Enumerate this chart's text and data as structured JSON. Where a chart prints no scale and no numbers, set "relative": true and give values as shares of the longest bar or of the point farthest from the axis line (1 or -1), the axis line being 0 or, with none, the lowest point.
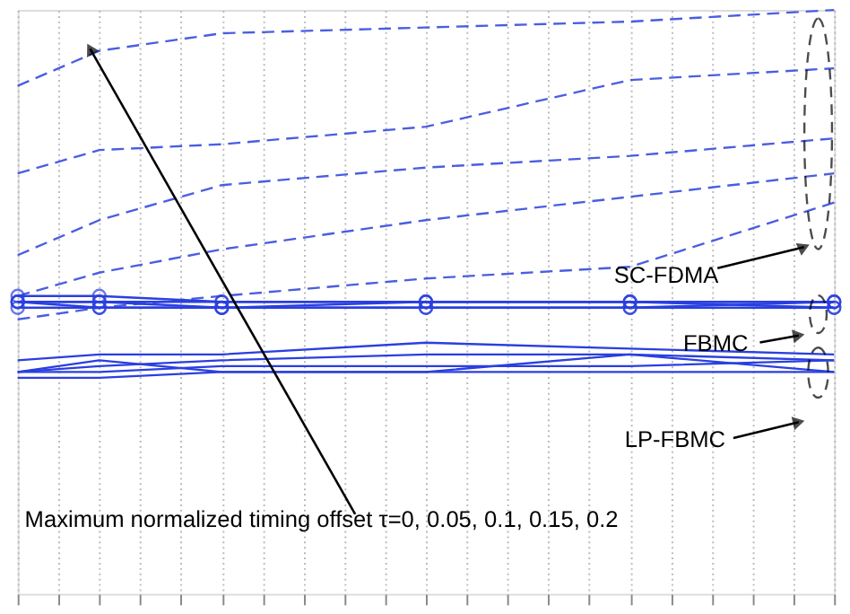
{
  "chart_data": {
    "type": "line",
    "relative": true,
    "categories": [
      null,
      null,
      null,
      null,
      null,
      null,
      null,
      null,
      null,
      null,
      null,
      null,
      null,
      null,
      null,
      null,
      null,
      null,
      null,
      null,
      null
    ],
    "grid": "x",
    "legend": false,
    "series": [
      {
        "color": "#4a5ee0",
        "line_style": "dashed",
        "marker": "none",
        "values": [
          0.87,
          null,
          0.93,
          null,
          null,
          0.96,
          null,
          null,
          null,
          null,
          0.97,
          null,
          null,
          null,
          null,
          0.98,
          null,
          null,
          null,
          null,
          1.0
        ]
      },
      {
        "color": "#4a5ee0",
        "line_style": "dashed",
        "marker": "none",
        "values": [
          0.72,
          null,
          0.76,
          null,
          null,
          0.77,
          null,
          null,
          null,
          null,
          0.8,
          null,
          null,
          null,
          null,
          0.88,
          null,
          null,
          null,
          null,
          0.9
        ]
      },
      {
        "color": "#4a5ee0",
        "line_style": "dashed",
        "marker": "none",
        "values": [
          0.58,
          null,
          0.64,
          null,
          null,
          0.7,
          null,
          null,
          null,
          null,
          0.73,
          null,
          null,
          null,
          null,
          0.75,
          null,
          null,
          null,
          null,
          0.78
        ]
      },
      {
        "color": "#4a5ee0",
        "line_style": "dashed",
        "marker": "none",
        "values": [
          0.51,
          null,
          0.55,
          null,
          null,
          0.59,
          null,
          null,
          null,
          null,
          0.64,
          null,
          null,
          null,
          null,
          0.68,
          null,
          null,
          null,
          null,
          0.72
        ]
      },
      {
        "color": "#4a5ee0",
        "line_style": "dashed",
        "marker": "none",
        "values": [
          0.47,
          null,
          0.49,
          null,
          null,
          0.51,
          null,
          null,
          null,
          null,
          0.54,
          null,
          null,
          null,
          null,
          0.56,
          null,
          null,
          null,
          null,
          0.67
        ]
      },
      {
        "color": "#2a3fe0",
        "line_style": "solid",
        "marker": "circle",
        "values": [
          0.51,
          null,
          0.51,
          null,
          null,
          0.5,
          null,
          null,
          null,
          null,
          0.5,
          null,
          null,
          null,
          null,
          0.5,
          null,
          null,
          null,
          null,
          0.5
        ]
      },
      {
        "color": "#2a3fe0",
        "line_style": "solid",
        "marker": "circle",
        "values": [
          0.5,
          null,
          0.5,
          null,
          null,
          0.5,
          null,
          null,
          null,
          null,
          0.5,
          null,
          null,
          null,
          null,
          0.5,
          null,
          null,
          null,
          null,
          0.5
        ]
      },
      {
        "color": "#2a3fe0",
        "line_style": "solid",
        "marker": "circle",
        "values": [
          0.5,
          null,
          0.5,
          null,
          null,
          0.49,
          null,
          null,
          null,
          null,
          0.49,
          null,
          null,
          null,
          null,
          0.49,
          null,
          null,
          null,
          null,
          0.5
        ]
      },
      {
        "color": "#2a3fe0",
        "line_style": "solid",
        "marker": "circle",
        "values": [
          0.49,
          null,
          0.49,
          null,
          null,
          0.49,
          null,
          null,
          null,
          null,
          0.49,
          null,
          null,
          null,
          null,
          0.49,
          null,
          null,
          null,
          null,
          0.49
        ]
      },
      {
        "color": "#2a3fe0",
        "line_style": "solid",
        "marker": "circle",
        "values": [
          0.5,
          null,
          0.49,
          null,
          null,
          0.49,
          null,
          null,
          null,
          null,
          0.5,
          null,
          null,
          null,
          null,
          0.5,
          null,
          null,
          null,
          null,
          0.49
        ]
      },
      {
        "color": "#2a3fe0",
        "line_style": "solid",
        "marker": "none",
        "values": [
          0.4,
          null,
          0.41,
          null,
          null,
          0.41,
          null,
          null,
          null,
          null,
          0.43,
          null,
          null,
          null,
          null,
          0.42,
          null,
          null,
          null,
          null,
          0.41
        ]
      },
      {
        "color": "#2a3fe0",
        "line_style": "solid",
        "marker": "none",
        "values": [
          0.38,
          null,
          0.4,
          null,
          null,
          0.38,
          null,
          null,
          null,
          null,
          0.38,
          null,
          null,
          null,
          null,
          0.41,
          null,
          null,
          null,
          null,
          0.4
        ]
      },
      {
        "color": "#2a3fe0",
        "line_style": "solid",
        "marker": "none",
        "values": [
          0.38,
          null,
          0.39,
          null,
          null,
          0.4,
          null,
          null,
          null,
          null,
          0.41,
          null,
          null,
          null,
          null,
          0.41,
          null,
          null,
          null,
          null,
          0.38
        ]
      },
      {
        "color": "#2a3fe0",
        "line_style": "solid",
        "marker": "none",
        "values": [
          0.37,
          null,
          0.37,
          null,
          null,
          0.38,
          null,
          null,
          null,
          null,
          0.38,
          null,
          null,
          null,
          null,
          0.38,
          null,
          null,
          null,
          null,
          0.38
        ]
      },
      {
        "color": "#2a3fe0",
        "line_style": "solid",
        "marker": "none",
        "values": [
          0.38,
          null,
          0.38,
          null,
          null,
          0.39,
          null,
          null,
          null,
          null,
          0.39,
          null,
          null,
          null,
          null,
          0.39,
          null,
          null,
          null,
          null,
          0.4
        ]
      }
    ],
    "annotations": [
      "SC-FDMA",
      "FBMC",
      "LP-FBMC",
      "Maximum normalized timing offset τ=0, 0.05, 0.1, 0.15, 0.2"
    ]
  }
}
